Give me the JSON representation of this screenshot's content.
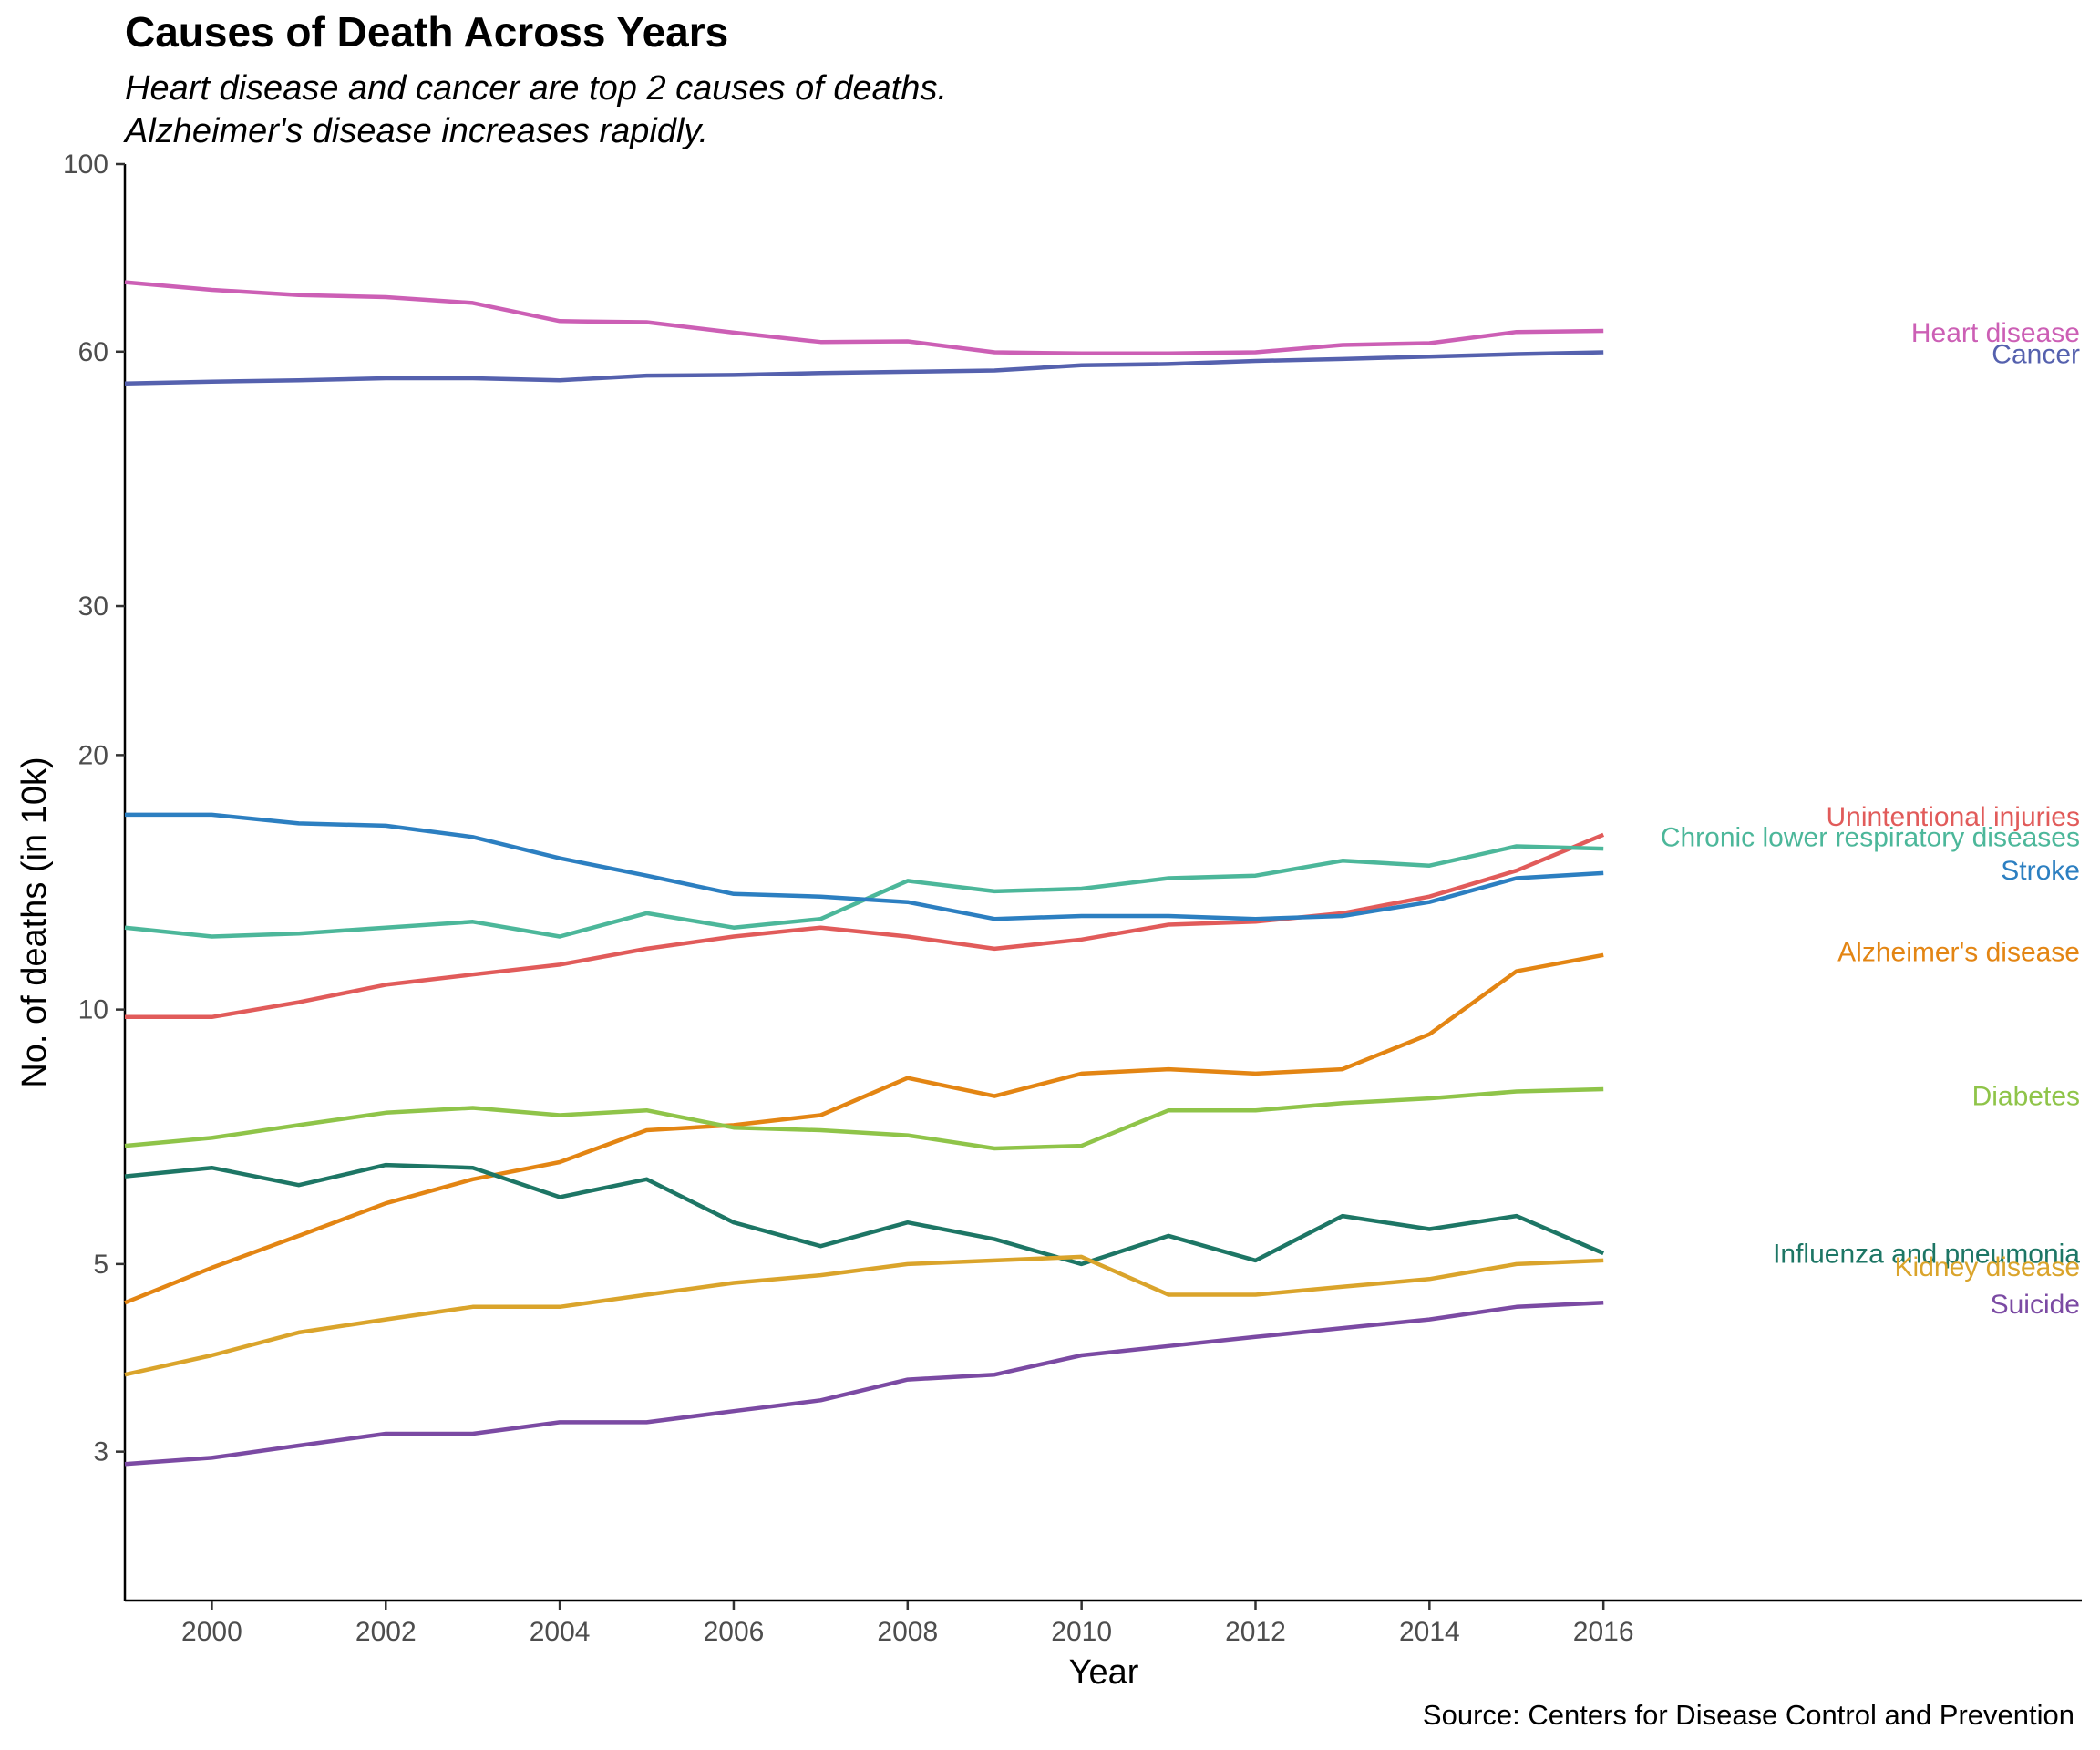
{
  "chart_data": {
    "type": "line",
    "title": "Causes of Death Across Years",
    "subtitle": [
      "Heart disease and cancer are top 2 causes of deaths.",
      "Alzheimer's disease increases rapidly."
    ],
    "caption": "Source: Centers for Disease Control and Prevention",
    "xlabel": "Year",
    "ylabel": "No. of deaths (in 10k)",
    "y_scale": "log",
    "xlim": [
      1999,
      2021.5
    ],
    "ylim": [
      2,
      100
    ],
    "x_ticks": [
      2000,
      2002,
      2004,
      2006,
      2008,
      2010,
      2012,
      2014,
      2016
    ],
    "y_ticks": [
      3,
      5,
      10,
      20,
      30,
      60,
      100
    ],
    "grid": false,
    "legend": "direct labels at right",
    "x": [
      1999,
      2000,
      2001,
      2002,
      2003,
      2004,
      2005,
      2006,
      2007,
      2008,
      2009,
      2010,
      2011,
      2012,
      2013,
      2014,
      2015,
      2016
    ],
    "series": [
      {
        "name": "Heart disease",
        "color": "#CC5FB5",
        "label_y": 63.2,
        "values": [
          72.5,
          71.0,
          70.0,
          69.6,
          68.5,
          65.2,
          65.0,
          63.2,
          61.6,
          61.7,
          59.9,
          59.7,
          59.7,
          59.9,
          61.1,
          61.4,
          63.3,
          63.5
        ]
      },
      {
        "name": "Cancer",
        "color": "#5561AE",
        "label_y": 59.6,
        "values": [
          55.0,
          55.3,
          55.5,
          55.8,
          55.8,
          55.5,
          56.2,
          56.3,
          56.6,
          56.8,
          57.0,
          57.8,
          58.0,
          58.5,
          58.8,
          59.2,
          59.6,
          59.9
        ]
      },
      {
        "name": "Unintentional injuries",
        "color": "#E15B5A",
        "label_y": 16.9,
        "values": [
          9.8,
          9.8,
          10.2,
          10.7,
          11.0,
          11.3,
          11.8,
          12.2,
          12.5,
          12.2,
          11.8,
          12.1,
          12.6,
          12.7,
          13.0,
          13.6,
          14.6,
          16.1
        ]
      },
      {
        "name": "Chronic lower respiratory diseases",
        "color": "#4CB79A",
        "label_y": 16.0,
        "values": [
          12.5,
          12.2,
          12.3,
          12.5,
          12.7,
          12.2,
          13.0,
          12.5,
          12.8,
          14.2,
          13.8,
          13.9,
          14.3,
          14.4,
          15.0,
          14.8,
          15.6,
          15.5
        ]
      },
      {
        "name": "Stroke",
        "color": "#2C7FC1",
        "label_y": 14.6,
        "values": [
          17.0,
          17.0,
          16.6,
          16.5,
          16.0,
          15.1,
          14.4,
          13.7,
          13.6,
          13.4,
          12.8,
          12.9,
          12.9,
          12.8,
          12.9,
          13.4,
          14.3,
          14.5
        ]
      },
      {
        "name": "Alzheimer's disease",
        "color": "#E38513",
        "label_y": 11.7,
        "values": [
          4.5,
          4.95,
          5.4,
          5.9,
          6.3,
          6.6,
          7.2,
          7.3,
          7.5,
          8.3,
          7.9,
          8.4,
          8.5,
          8.4,
          8.5,
          9.35,
          11.1,
          11.6
        ]
      },
      {
        "name": "Diabetes",
        "color": "#8FC449",
        "label_y": 7.9,
        "values": [
          6.9,
          7.05,
          7.3,
          7.55,
          7.65,
          7.5,
          7.6,
          7.25,
          7.2,
          7.1,
          6.85,
          6.9,
          7.6,
          7.6,
          7.75,
          7.85,
          8.0,
          8.05
        ]
      },
      {
        "name": "Influenza and pneumonia",
        "color": "#1D7665",
        "label_y": 5.14,
        "values": [
          6.35,
          6.5,
          6.2,
          6.55,
          6.5,
          6.0,
          6.3,
          5.6,
          5.25,
          5.6,
          5.35,
          5.0,
          5.4,
          5.05,
          5.7,
          5.5,
          5.7,
          5.15
        ]
      },
      {
        "name": "Kidney disease",
        "color": "#DAA42B",
        "label_y": 4.96,
        "values": [
          3.7,
          3.9,
          4.15,
          4.3,
          4.45,
          4.45,
          4.6,
          4.75,
          4.85,
          5.0,
          5.05,
          5.1,
          4.6,
          4.6,
          4.7,
          4.8,
          5.0,
          5.05
        ]
      },
      {
        "name": "Suicide",
        "color": "#7B4AA3",
        "label_y": 4.48,
        "values": [
          2.9,
          2.95,
          3.05,
          3.15,
          3.15,
          3.25,
          3.25,
          3.35,
          3.45,
          3.65,
          3.7,
          3.9,
          4.0,
          4.1,
          4.2,
          4.3,
          4.45,
          4.5
        ]
      }
    ]
  }
}
